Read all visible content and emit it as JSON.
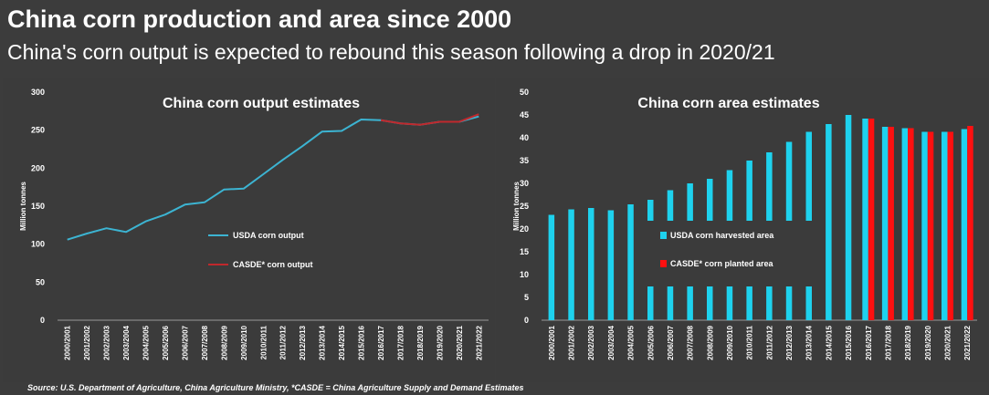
{
  "header": {
    "title": "China corn production and area since 2000",
    "subtitle": "China's corn output is expected to rebound this season following a drop in 2020/21"
  },
  "footer": {
    "source": "Source: U.S. Department of Agriculture, China Agriculture Ministry, *CASDE = China Agriculture Supply and Demand Estimates"
  },
  "chart_data": [
    {
      "type": "line",
      "title": "China corn output estimates",
      "ylabel": "Million tonnes",
      "ylim": [
        0,
        300
      ],
      "yticks": [
        0,
        50,
        100,
        150,
        200,
        250,
        300
      ],
      "categories": [
        "2000/2001",
        "2001/2002",
        "2002/2003",
        "2003/2004",
        "2004/2005",
        "2005/2006",
        "2006/2007",
        "2007/2008",
        "2008/2009",
        "2009/2010",
        "2010/2011",
        "2011/2012",
        "2012/2013",
        "2013/2014",
        "2014/2015",
        "2015/2016",
        "2016/2017",
        "2017/2018",
        "2018/2019",
        "2019/2020",
        "2020/2021",
        "2021/2022"
      ],
      "series": [
        {
          "name": "USDA corn output",
          "color": "#3cb4d2",
          "values": [
            106,
            114,
            121,
            116,
            130,
            139,
            152,
            155,
            172,
            173,
            192,
            211,
            229,
            248,
            249,
            264,
            263,
            259,
            257,
            261,
            261,
            268
          ]
        },
        {
          "name": "CASDE* corn output",
          "color": "#c0282c",
          "values": [
            null,
            null,
            null,
            null,
            null,
            null,
            null,
            null,
            null,
            null,
            null,
            null,
            null,
            null,
            null,
            null,
            263,
            259,
            257,
            261,
            261,
            271
          ]
        }
      ],
      "legend": "center-right"
    },
    {
      "type": "bar",
      "title": "China corn area estimates",
      "ylabel": "Million tonnes",
      "ylim": [
        0,
        50
      ],
      "yticks": [
        0,
        5,
        10,
        15,
        20,
        25,
        30,
        35,
        40,
        45,
        50
      ],
      "categories": [
        "2000/2001",
        "2001/2002",
        "2002/2003",
        "2003/2004",
        "2004/2005",
        "2005/2006",
        "2006/2007",
        "2007/2008",
        "2008/2009",
        "2009/2010",
        "2010/2011",
        "2011/2012",
        "2012/2013",
        "2013/2014",
        "2014/2015",
        "2015/2016",
        "2016/2017",
        "2017/2018",
        "2018/2019",
        "2019/2020",
        "2020/2021",
        "2021/2022"
      ],
      "series": [
        {
          "name": "USDA corn harvested area",
          "color": "#1ed2ee",
          "values": [
            23.1,
            24.3,
            24.6,
            24.1,
            25.4,
            26.4,
            28.5,
            30.0,
            31.0,
            32.9,
            35.0,
            36.8,
            39.1,
            41.3,
            43.0,
            45.0,
            44.2,
            42.4,
            42.1,
            41.3,
            41.3,
            41.9
          ]
        },
        {
          "name": "CASDE* corn planted area",
          "color": "#ff1010",
          "values": [
            null,
            null,
            null,
            null,
            null,
            null,
            null,
            null,
            null,
            null,
            null,
            null,
            null,
            null,
            null,
            null,
            44.2,
            42.4,
            42.1,
            41.3,
            41.3,
            42.6
          ]
        }
      ],
      "legend": "center"
    }
  ]
}
